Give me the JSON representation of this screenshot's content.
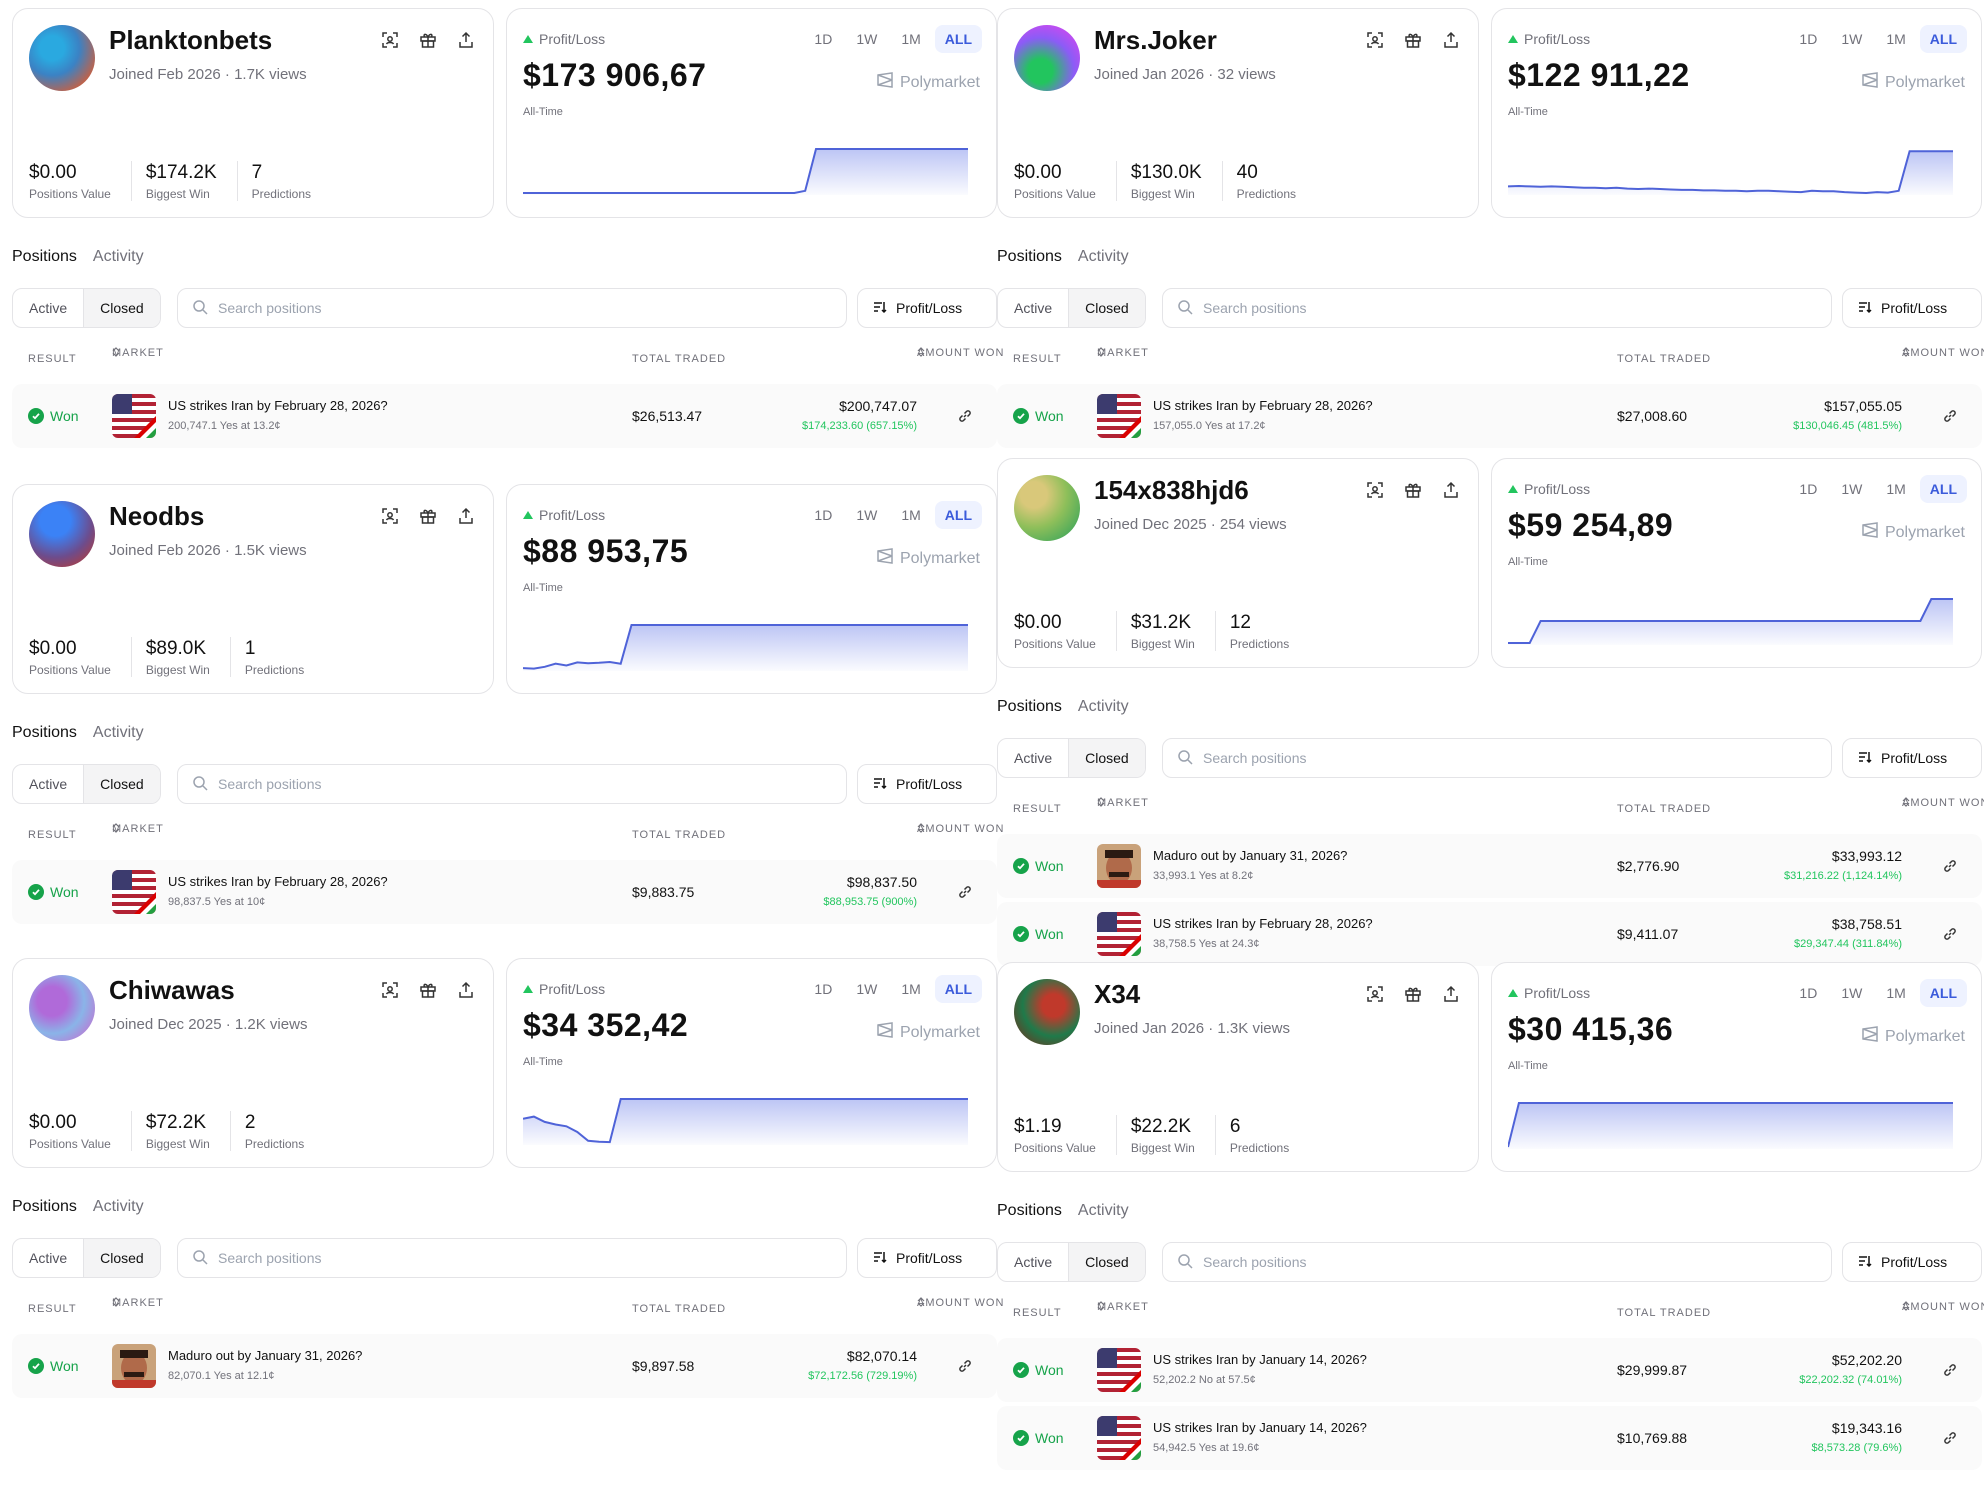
{
  "common": {
    "range_buttons": [
      "1D",
      "1W",
      "1M",
      "ALL"
    ],
    "profit_loss_label": "Profit/Loss",
    "all_time_label": "All-Time",
    "polymarket_label": "Polymarket",
    "positions_tab": "Positions",
    "activity_tab": "Activity",
    "active_label": "Active",
    "closed_label": "Closed",
    "search_placeholder": "Search positions",
    "sort_label": "Profit/Loss",
    "col_result": "RESULT",
    "col_market": "MARKET",
    "col_total_traded": "TOTAL TRADED",
    "col_amount_won": "AMOUNT WON",
    "won_label": "Won",
    "stat_labels": [
      "Positions Value",
      "Biggest Win",
      "Predictions"
    ],
    "colors": {
      "accent": "#3b5bdb",
      "green": "#16a34a",
      "chart_line": "#4f63d8"
    },
    "icons": [
      "scan-icon",
      "gift-icon",
      "share-icon",
      "search-icon",
      "sort-icon",
      "link-icon",
      "check-icon"
    ]
  },
  "panels": [
    {
      "name": "Planktonbets",
      "meta": "Joined Feb 2026 · 1.7K views",
      "stats": [
        "$0.00",
        "$174.2K",
        "7"
      ],
      "pl_amount": "$173 906,67",
      "chart_data": {
        "type": "area",
        "title": "",
        "values": [
          0,
          0,
          0,
          0,
          0,
          0,
          0,
          0,
          0,
          0,
          0,
          0,
          0,
          0,
          0,
          0,
          0,
          0,
          0,
          0,
          0,
          0,
          0,
          0,
          0,
          0,
          0.05,
          1,
          1,
          1,
          1,
          1,
          1,
          1,
          1,
          1,
          1,
          1,
          1,
          1,
          1,
          1
        ],
        "ylim": [
          0,
          1
        ]
      },
      "rows": [
        {
          "market": "US strikes Iran by February 28, 2026?",
          "sub": "200,747.1 Yes at 13.2¢",
          "traded": "$26,513.47",
          "won": "$200,747.07",
          "gain": "$174,233.60 (657.15%)",
          "thumb": "flag"
        }
      ]
    },
    {
      "name": "Neodbs",
      "meta": "Joined Feb 2026 · 1.5K views",
      "stats": [
        "$0.00",
        "$89.0K",
        "1"
      ],
      "pl_amount": "$88 953,75",
      "chart_data": {
        "type": "area",
        "title": "",
        "values": [
          0.02,
          0.01,
          0.05,
          0.12,
          0.08,
          0.15,
          0.13,
          0.14,
          0.16,
          0.12,
          1,
          1,
          1,
          1,
          1,
          1,
          1,
          1,
          1,
          1,
          1,
          1,
          1,
          1,
          1,
          1,
          1,
          1,
          1,
          1,
          1,
          1,
          1,
          1,
          1,
          1,
          1,
          1,
          1,
          1,
          1,
          1
        ],
        "ylim": [
          0,
          1
        ]
      },
      "rows": [
        {
          "market": "US strikes Iran by February 28, 2026?",
          "sub": "98,837.5 Yes at 10¢",
          "traded": "$9,883.75",
          "won": "$98,837.50",
          "gain": "$88,953.75 (900%)",
          "thumb": "flag"
        }
      ]
    },
    {
      "name": "Chiwawas",
      "meta": "Joined Dec 2025 · 1.2K views",
      "stats": [
        "$0.00",
        "$72.2K",
        "2"
      ],
      "pl_amount": "$34 352,42",
      "chart_data": {
        "type": "area",
        "title": "",
        "values": [
          0.55,
          0.6,
          0.48,
          0.42,
          0.38,
          0.25,
          0.05,
          0.03,
          0.02,
          1,
          1,
          1,
          1,
          1,
          1,
          1,
          1,
          1,
          1,
          1,
          1,
          1,
          1,
          1,
          1,
          1,
          1,
          1,
          1,
          1,
          1,
          1,
          1,
          1,
          1,
          1,
          1,
          1,
          1,
          1,
          1,
          1
        ],
        "ylim": [
          0,
          1
        ]
      },
      "rows": [
        {
          "market": "Maduro out by January 31, 2026?",
          "sub": "82,070.1 Yes at 12.1¢",
          "traded": "$9,897.58",
          "won": "$82,070.14",
          "gain": "$72,172.56 (729.19%)",
          "thumb": "face"
        }
      ]
    },
    {
      "name": "Mrs.Joker",
      "meta": "Joined Jan 2026 · 32 views",
      "stats": [
        "$0.00",
        "$130.0K",
        "40"
      ],
      "pl_amount": "$122 911,22",
      "chart_data": {
        "type": "area",
        "title": "",
        "values": [
          0.15,
          0.16,
          0.15,
          0.14,
          0.15,
          0.14,
          0.13,
          0.12,
          0.12,
          0.11,
          0.12,
          0.1,
          0.09,
          0.1,
          0.09,
          0.08,
          0.07,
          0.07,
          0.06,
          0.06,
          0.05,
          0.05,
          0.04,
          0.05,
          0.05,
          0.04,
          0.03,
          0.02,
          0.05,
          0.04,
          0.04,
          0.02,
          0.01,
          0.0,
          0.02,
          0.01,
          0.05,
          0.95,
          0.95,
          0.95,
          0.95,
          0.95
        ],
        "ylim": [
          0,
          1
        ]
      },
      "rows": [
        {
          "market": "US strikes Iran by February 28, 2026?",
          "sub": "157,055.0 Yes at 17.2¢",
          "traded": "$27,008.60",
          "won": "$157,055.05",
          "gain": "$130,046.45 (481.5%)",
          "thumb": "flag"
        }
      ]
    },
    {
      "name": "154x838hjd6",
      "meta": "Joined Dec 2025 · 254 views",
      "stats": [
        "$0.00",
        "$31.2K",
        "12"
      ],
      "pl_amount": "$59 254,89",
      "chart_data": {
        "type": "area",
        "title": "",
        "values": [
          0,
          0,
          0,
          0.5,
          0.5,
          0.5,
          0.5,
          0.5,
          0.5,
          0.5,
          0.5,
          0.5,
          0.5,
          0.5,
          0.5,
          0.5,
          0.5,
          0.5,
          0.5,
          0.5,
          0.5,
          0.5,
          0.5,
          0.5,
          0.5,
          0.5,
          0.5,
          0.5,
          0.5,
          0.5,
          0.5,
          0.5,
          0.5,
          0.5,
          0.5,
          0.5,
          0.5,
          0.5,
          0.5,
          1,
          1,
          1
        ],
        "ylim": [
          0,
          1
        ]
      },
      "rows": [
        {
          "market": "Maduro out by January 31, 2026?",
          "sub": "33,993.1 Yes at 8.2¢",
          "traded": "$2,776.90",
          "won": "$33,993.12",
          "gain": "$31,216.22 (1,124.14%)",
          "thumb": "face"
        },
        {
          "market": "US strikes Iran by February 28, 2026?",
          "sub": "38,758.5 Yes at 24.3¢",
          "traded": "$9,411.07",
          "won": "$38,758.51",
          "gain": "$29,347.44 (311.84%)",
          "thumb": "flag"
        }
      ]
    },
    {
      "name": "X34",
      "meta": "Joined Jan 2026 · 1.3K views",
      "stats": [
        "$1.19",
        "$22.2K",
        "6"
      ],
      "pl_amount": "$30 415,36",
      "chart_data": {
        "type": "area",
        "title": "",
        "values": [
          0,
          1,
          1,
          1,
          1,
          1,
          1,
          1,
          1,
          1,
          1,
          1,
          1,
          1,
          1,
          1,
          1,
          1,
          1,
          1,
          1,
          1,
          1,
          1,
          1,
          1,
          1,
          1,
          1,
          1,
          1,
          1,
          1,
          1,
          1,
          1,
          1,
          1,
          1,
          1,
          1,
          1
        ],
        "ylim": [
          0,
          1
        ]
      },
      "rows": [
        {
          "market": "US strikes Iran by January 14, 2026?",
          "sub": "52,202.2 No at 57.5¢",
          "traded": "$29,999.87",
          "won": "$52,202.20",
          "gain": "$22,202.32 (74.01%)",
          "thumb": "flag"
        },
        {
          "market": "US strikes Iran by January 14, 2026?",
          "sub": "54,942.5 Yes at 19.6¢",
          "traded": "$10,769.88",
          "won": "$19,343.16",
          "gain": "$8,573.28 (79.6%)",
          "thumb": "flag"
        }
      ]
    }
  ]
}
